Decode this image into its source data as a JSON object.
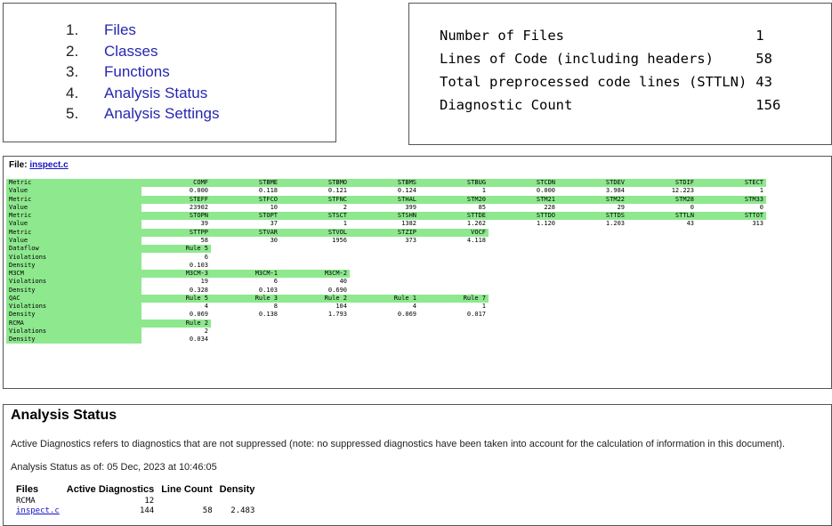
{
  "toc": {
    "items": [
      {
        "num": "1.",
        "label": "Files"
      },
      {
        "num": "2.",
        "label": "Classes"
      },
      {
        "num": "3.",
        "label": "Functions"
      },
      {
        "num": "4.",
        "label": "Analysis Status"
      },
      {
        "num": "5.",
        "label": "Analysis Settings"
      }
    ]
  },
  "summary": {
    "rows": [
      {
        "label": "Number of Files",
        "value": "1"
      },
      {
        "label": "Lines of Code (including headers)",
        "value": "58"
      },
      {
        "label": "Total preprocessed code lines (STTLN)",
        "value": "43"
      },
      {
        "label": "Diagnostic Count",
        "value": "156"
      }
    ]
  },
  "metrics": {
    "file_prefix": "File: ",
    "file_name": "inspect.c",
    "rows": [
      {
        "label": "Metric",
        "kind": "head",
        "cells": [
          "COMF",
          "STBME",
          "STBMO",
          "STBMS",
          "STBUG",
          "STCDN",
          "STDEV",
          "STDIF",
          "STECT"
        ]
      },
      {
        "label": "Value",
        "kind": "val",
        "cells": [
          "0.000",
          "0.118",
          "0.121",
          "0.124",
          "1",
          "0.000",
          "3.984",
          "12.223",
          "1"
        ]
      },
      {
        "label": "Metric",
        "kind": "head",
        "cells": [
          "STEFF",
          "STFCO",
          "STFNC",
          "STHAL",
          "STM20",
          "STM21",
          "STM22",
          "STM28",
          "STM33"
        ]
      },
      {
        "label": "Value",
        "kind": "val",
        "cells": [
          "23902",
          "10",
          "2",
          "399",
          "85",
          "228",
          "29",
          "0",
          "0"
        ]
      },
      {
        "label": "Metric",
        "kind": "head",
        "cells": [
          "STOPN",
          "STOPT",
          "STSCT",
          "STSHN",
          "STTDE",
          "STTDO",
          "STTDS",
          "STTLN",
          "STTOT"
        ]
      },
      {
        "label": "Value",
        "kind": "val",
        "cells": [
          "39",
          "37",
          "1",
          "1382",
          "1.262",
          "1.120",
          "1.203",
          "43",
          "313"
        ]
      },
      {
        "label": "Metric",
        "kind": "head",
        "cells": [
          "STTPP",
          "STVAR",
          "STVOL",
          "STZIP",
          "VOCF"
        ]
      },
      {
        "label": "Value",
        "kind": "val",
        "cells": [
          "58",
          "30",
          "1956",
          "373",
          "4.118"
        ]
      },
      {
        "label": "Dataflow",
        "kind": "head",
        "cells": [
          "Rule 5"
        ]
      },
      {
        "label": "Violations",
        "kind": "val",
        "cells": [
          "6"
        ]
      },
      {
        "label": "Density",
        "kind": "val",
        "cells": [
          "0.103"
        ]
      },
      {
        "label": "M3CM",
        "kind": "head",
        "cells": [
          "M3CM-3",
          "M3CM-1",
          "M3CM-2"
        ]
      },
      {
        "label": "Violations",
        "kind": "val",
        "cells": [
          "19",
          "6",
          "40"
        ]
      },
      {
        "label": "Density",
        "kind": "val",
        "cells": [
          "0.328",
          "0.103",
          "0.690"
        ]
      },
      {
        "label": "QAC",
        "kind": "head",
        "cells": [
          "Rule 5",
          "Rule 3",
          "Rule 2",
          "Rule 1",
          "Rule 7"
        ]
      },
      {
        "label": "Violations",
        "kind": "val",
        "cells": [
          "4",
          "8",
          "104",
          "4",
          "1"
        ]
      },
      {
        "label": "Density",
        "kind": "val",
        "cells": [
          "0.069",
          "0.138",
          "1.793",
          "0.069",
          "0.017"
        ]
      },
      {
        "label": "RCMA",
        "kind": "head",
        "cells": [
          "Rule 2"
        ]
      },
      {
        "label": "Violations",
        "kind": "val",
        "cells": [
          "2"
        ]
      },
      {
        "label": "Density",
        "kind": "val",
        "cells": [
          "0.034"
        ]
      }
    ]
  },
  "status": {
    "title": "Analysis Status",
    "description": "Active Diagnostics refers to diagnostics that are not suppressed (note: no suppressed diagnostics have been taken into account for the calculation of information in this document).",
    "as_of": "Analysis Status as of: 05 Dec, 2023 at 10:46:05",
    "headers": [
      "Files",
      "Active Diagnostics",
      "Line Count",
      "Density"
    ],
    "rows": [
      {
        "file": "RCMA",
        "link": false,
        "active": "12",
        "lines": "",
        "density": ""
      },
      {
        "file": "inspect.c",
        "link": true,
        "active": "144",
        "lines": "58",
        "density": "2.483"
      }
    ]
  },
  "colors": {
    "accent_green": "#8ee88e",
    "link_blue": "#1515c8",
    "toc_link": "#2626b0"
  }
}
